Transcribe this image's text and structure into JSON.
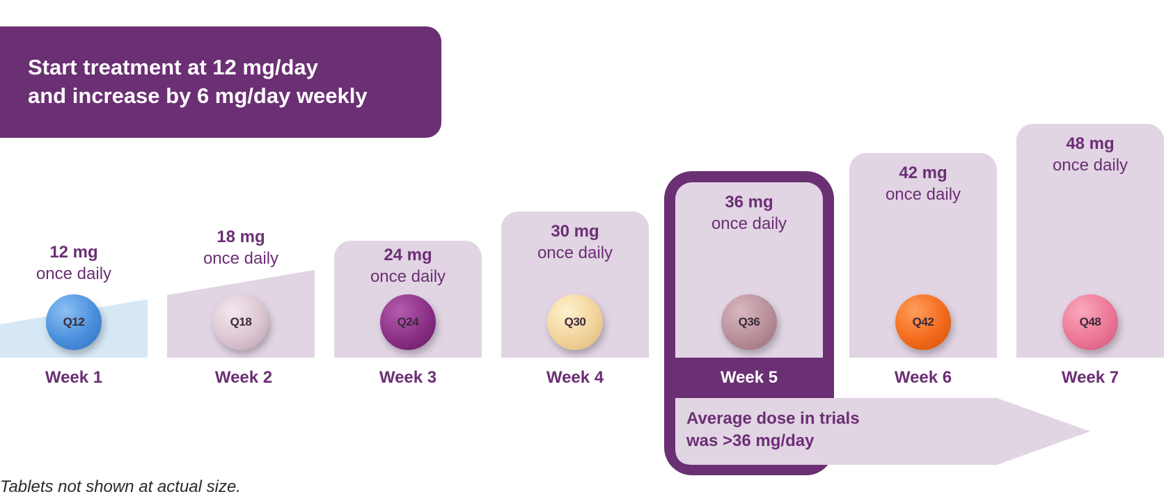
{
  "banner": {
    "line1": "Start treatment at 12 mg/day",
    "line2": "and increase by 6 mg/day weekly"
  },
  "steps": [
    {
      "week": "Week 1",
      "dose": "12 mg",
      "frequency": "once daily",
      "tablet": "Q12",
      "tablet_color": "#4a8fdc"
    },
    {
      "week": "Week 2",
      "dose": "18 mg",
      "frequency": "once daily",
      "tablet": "Q18",
      "tablet_color": "#dcc6d2"
    },
    {
      "week": "Week 3",
      "dose": "24 mg",
      "frequency": "once daily",
      "tablet": "Q24",
      "tablet_color": "#8a2f86"
    },
    {
      "week": "Week 4",
      "dose": "30 mg",
      "frequency": "once daily",
      "tablet": "Q30",
      "tablet_color": "#f2d49b"
    },
    {
      "week": "Week 5",
      "dose": "36 mg",
      "frequency": "once daily",
      "tablet": "Q36",
      "tablet_color": "#b88e98"
    },
    {
      "week": "Week 6",
      "dose": "42 mg",
      "frequency": "once daily",
      "tablet": "Q42",
      "tablet_color": "#f36b1c"
    },
    {
      "week": "Week 7",
      "dose": "48 mg",
      "frequency": "once daily",
      "tablet": "Q48",
      "tablet_color": "#ec7796"
    }
  ],
  "average_note": {
    "line1": "Average dose in trials",
    "line2": "was >36 mg/day"
  },
  "footnote": "Tablets not shown at actual size.",
  "colors": {
    "brand_purple": "#6b2f74",
    "panel_lavender": "#e1d4e3",
    "week1_blue": "#d6e8f6"
  }
}
